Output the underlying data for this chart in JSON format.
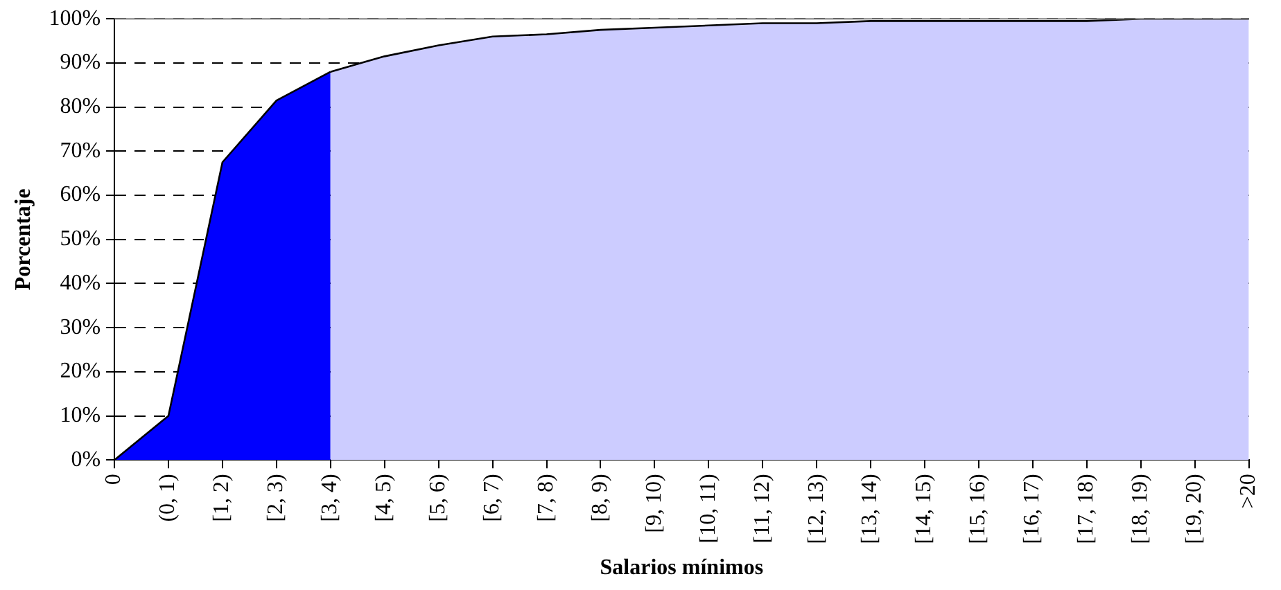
{
  "chart_data": {
    "type": "area",
    "xlabel": "Salarios mínimos",
    "ylabel": "Porcentaje",
    "categories": [
      "0",
      "(0, 1)",
      "[1, 2)",
      "[2, 3)",
      "[3, 4)",
      "[4, 5)",
      "[5, 6)",
      "[6, 7)",
      "[7, 8)",
      "[8, 9)",
      "[9, 10)",
      "[10, 11)",
      "[11, 12)",
      "[12, 13)",
      "[13, 14)",
      "[14, 15)",
      "[15, 16)",
      "[16, 17)",
      "[17, 18)",
      "[18, 19)",
      "[19, 20)",
      ">20"
    ],
    "series": [
      {
        "color": "#0000ff",
        "values": [
          0,
          10,
          67.5,
          81.5,
          88,
          null,
          null,
          null,
          null,
          null,
          null,
          null,
          null,
          null,
          null,
          null,
          null,
          null,
          null,
          null,
          null,
          null
        ]
      },
      {
        "color": "#ccccff",
        "values": [
          null,
          null,
          null,
          null,
          88,
          91.5,
          94,
          96,
          96.5,
          97.5,
          98,
          98.5,
          99,
          99,
          99.5,
          99.5,
          99.5,
          99.5,
          99.5,
          100,
          100,
          100
        ]
      }
    ],
    "ylim": [
      0,
      100
    ],
    "yticks": [
      {
        "value": 0,
        "label": "0%"
      },
      {
        "value": 10,
        "label": "10%"
      },
      {
        "value": 20,
        "label": "20%"
      },
      {
        "value": 30,
        "label": "30%"
      },
      {
        "value": 40,
        "label": "40%"
      },
      {
        "value": 50,
        "label": "50%"
      },
      {
        "value": 60,
        "label": "60%"
      },
      {
        "value": 70,
        "label": "70%"
      },
      {
        "value": 80,
        "label": "80%"
      },
      {
        "value": 90,
        "label": "90%"
      },
      {
        "value": 100,
        "label": "100%"
      }
    ],
    "grid": "y",
    "legend": false,
    "line_style": "solid",
    "marker": "none"
  }
}
